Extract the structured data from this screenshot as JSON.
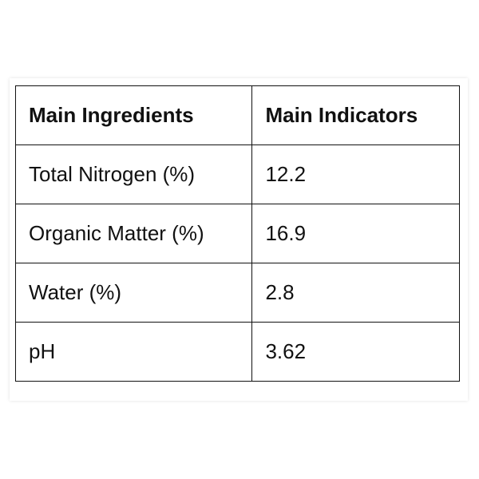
{
  "table": {
    "header": [
      "Main Ingredients",
      "Main Indicators"
    ],
    "rows": [
      [
        "Total Nitrogen (%)",
        "12.2"
      ],
      [
        "Organic Matter (%)",
        "16.9"
      ],
      [
        "Water (%)",
        "2.8"
      ],
      [
        "pH",
        "3.62"
      ]
    ]
  }
}
